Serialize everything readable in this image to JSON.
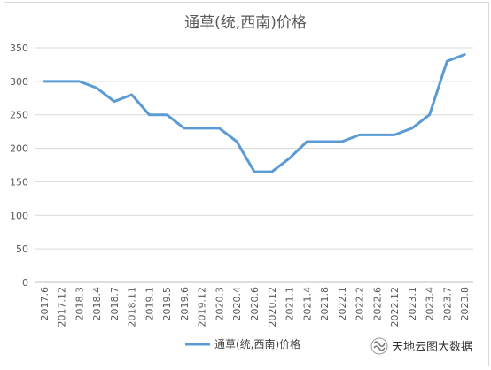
{
  "chart_data": {
    "type": "line",
    "title": "通草(统,西南)价格",
    "xlabel": "",
    "ylabel": "",
    "ylim": [
      0,
      350
    ],
    "yticks": [
      0,
      50,
      100,
      150,
      200,
      250,
      300,
      350
    ],
    "grid": true,
    "legend_position": "bottom",
    "categories": [
      "2017.6",
      "2017.12",
      "2018.3",
      "2018.4",
      "2018.7",
      "2018.11",
      "2019.1",
      "2019.5",
      "2019.6",
      "2019.12",
      "2020.3",
      "2020.4",
      "2020.6",
      "2020.12",
      "2021.1",
      "2021.4",
      "2021.8",
      "2022.1",
      "2022.2",
      "2022.6",
      "2022.12",
      "2023.1",
      "2023.4",
      "2023.7",
      "2023.8"
    ],
    "series": [
      {
        "name": "通草(统,西南)价格",
        "color": "#5b9bd5",
        "values": [
          300,
          300,
          300,
          290,
          270,
          280,
          250,
          250,
          230,
          230,
          230,
          210,
          165,
          165,
          185,
          210,
          210,
          210,
          220,
          220,
          220,
          230,
          250,
          330,
          340
        ]
      }
    ]
  },
  "watermark": {
    "text": "天地云图大数据",
    "icon": "wechat-channel-icon"
  }
}
